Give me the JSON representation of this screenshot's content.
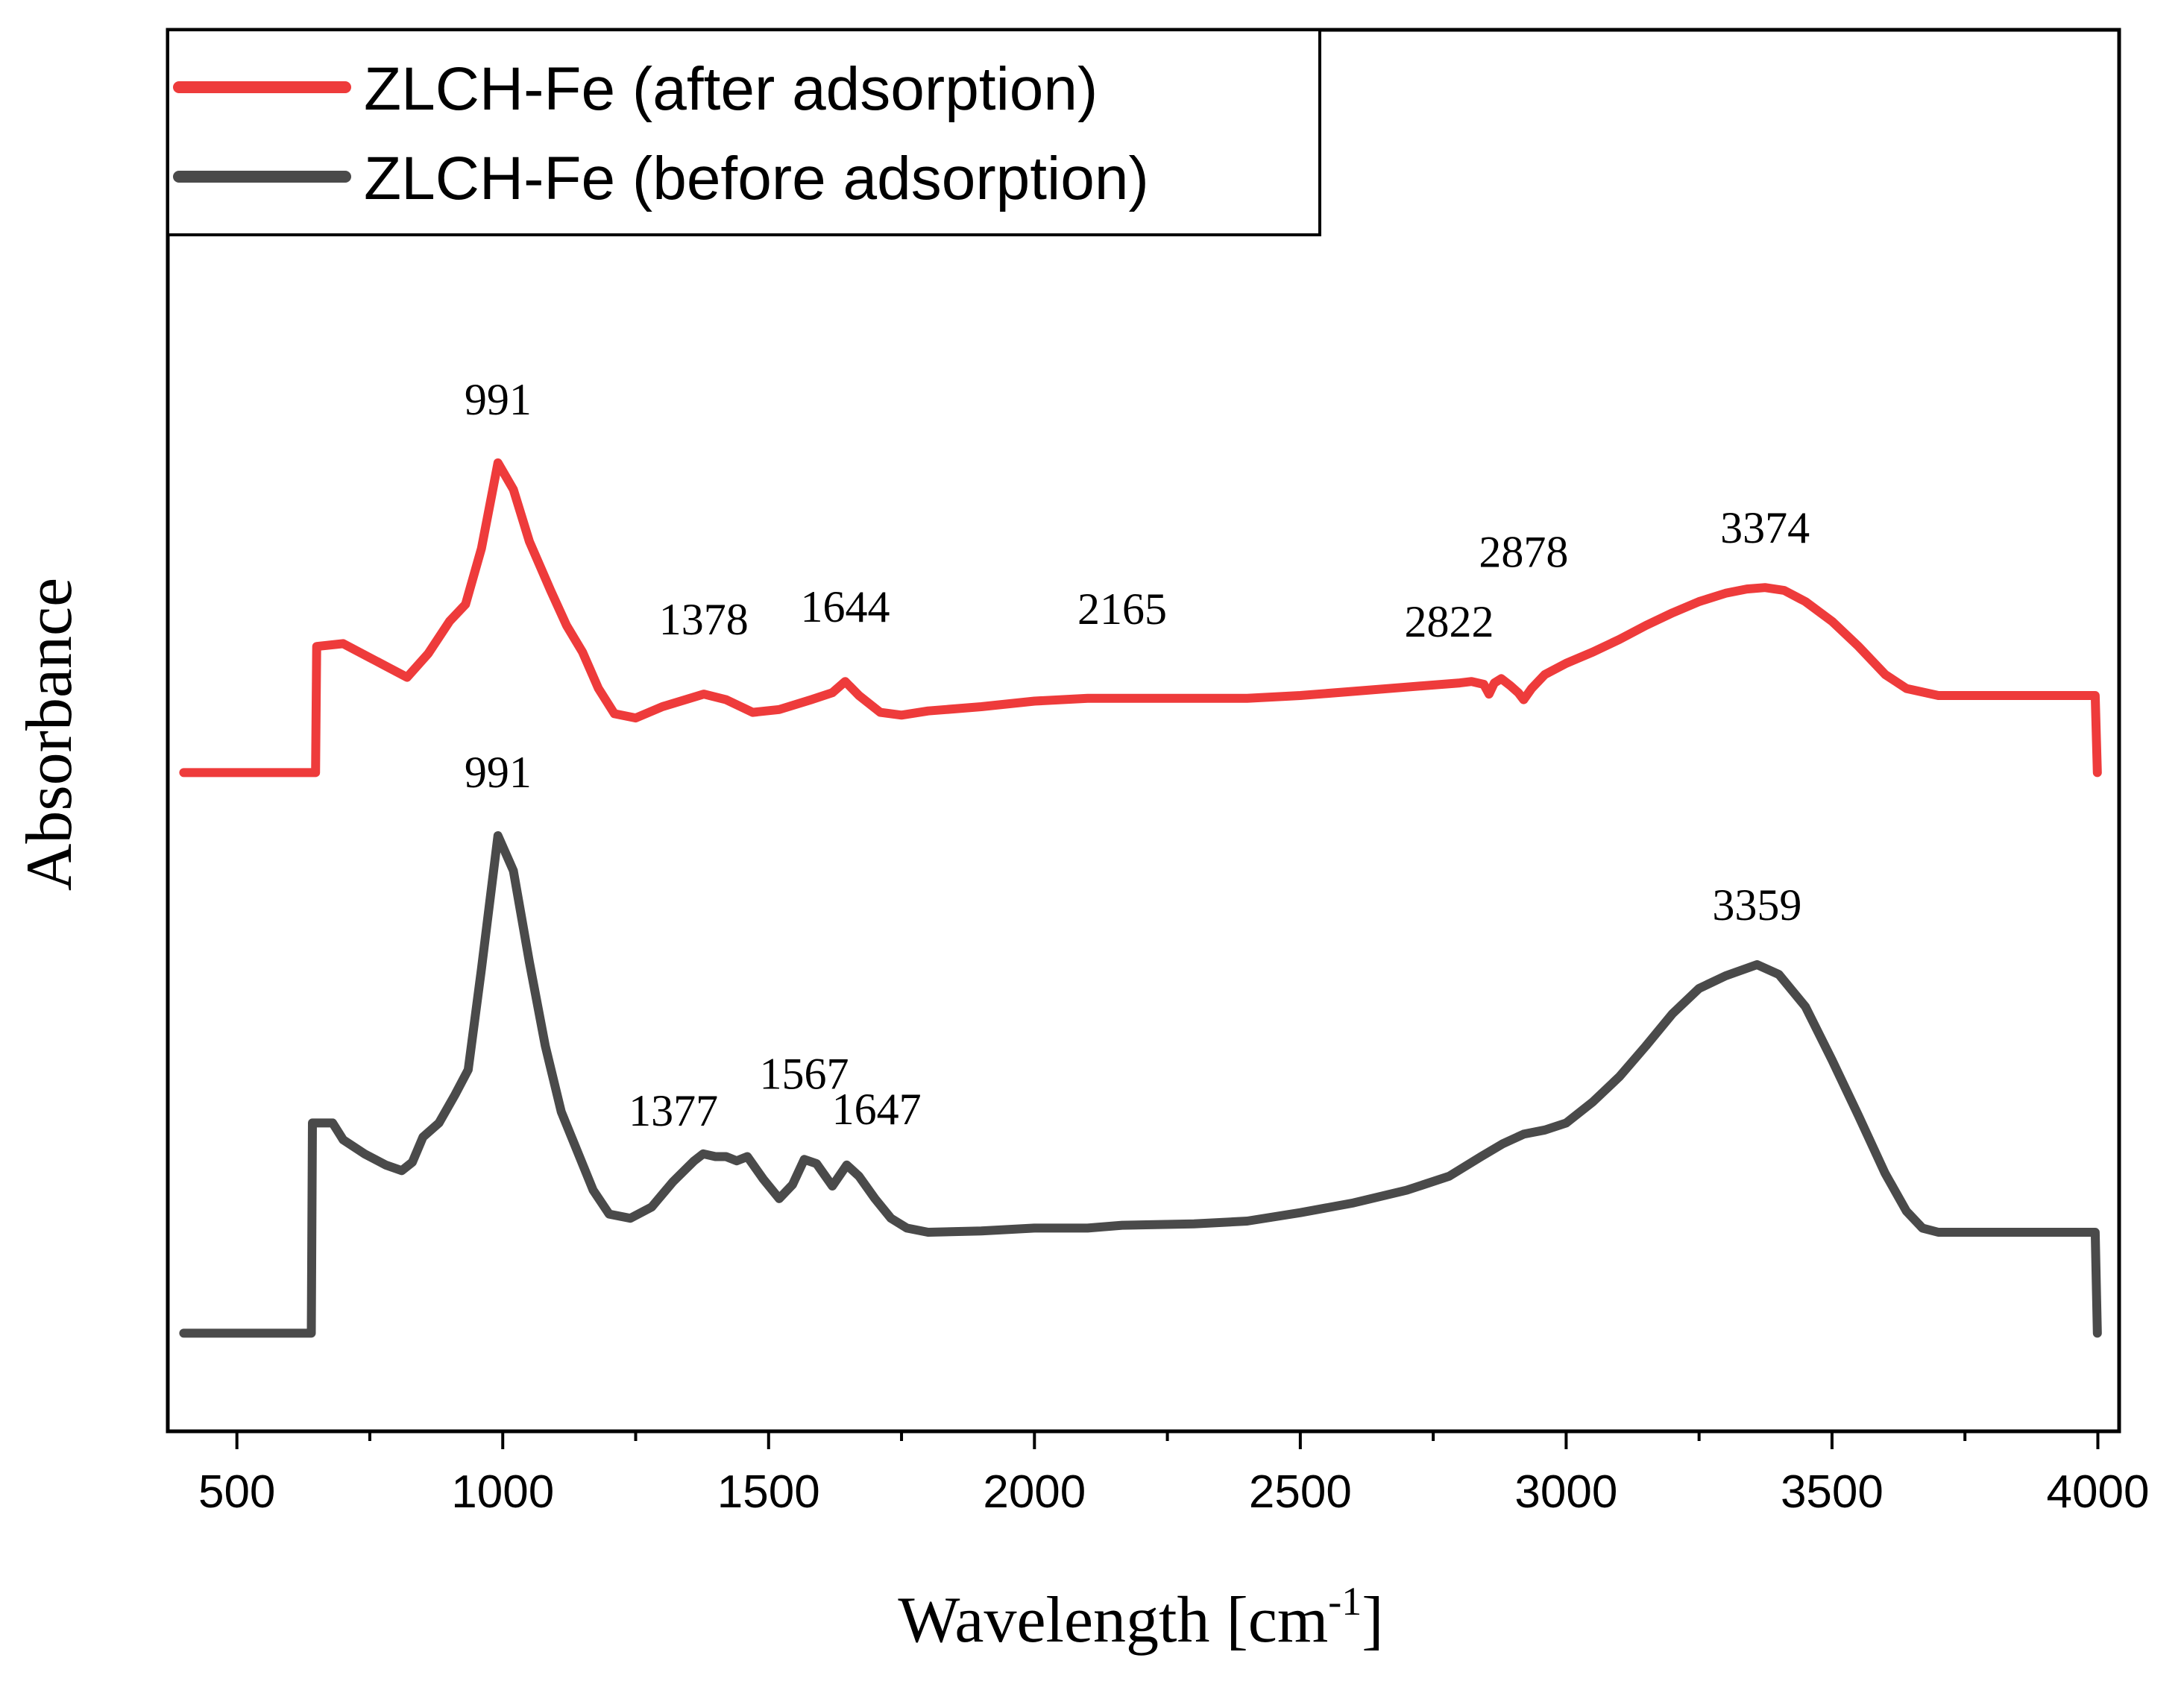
{
  "chart_data": {
    "type": "line",
    "title": "",
    "xlabel": "Wavelength [cm",
    "xlabel_sup": "-1",
    "xlabel_suffix": "]",
    "ylabel": "Absorbance",
    "xlim": [
      370,
      4040
    ],
    "ylim": [
      0,
      100
    ],
    "xticks": [
      500,
      1000,
      1500,
      2000,
      2500,
      3000,
      3500,
      4000
    ],
    "yticks_labeled": false,
    "grid": false,
    "legend_position": "top-left",
    "series": [
      {
        "name": "ZLCH-Fe (after adsorption)",
        "color": "#ee3b3b",
        "points": [
          [
            400,
            47
          ],
          [
            648,
            47
          ],
          [
            650,
            56
          ],
          [
            700,
            56.2
          ],
          [
            760,
            55
          ],
          [
            820,
            53.8
          ],
          [
            860,
            55.5
          ],
          [
            900,
            57.8
          ],
          [
            930,
            59
          ],
          [
            960,
            63
          ],
          [
            991,
            69.1
          ],
          [
            1020,
            67.2
          ],
          [
            1050,
            63.5
          ],
          [
            1090,
            60
          ],
          [
            1120,
            57.5
          ],
          [
            1150,
            55.6
          ],
          [
            1180,
            53
          ],
          [
            1210,
            51.2
          ],
          [
            1250,
            50.9
          ],
          [
            1300,
            51.7
          ],
          [
            1378,
            52.6
          ],
          [
            1420,
            52.2
          ],
          [
            1470,
            51.3
          ],
          [
            1520,
            51.5
          ],
          [
            1580,
            52.2
          ],
          [
            1620,
            52.7
          ],
          [
            1644,
            53.5
          ],
          [
            1670,
            52.5
          ],
          [
            1710,
            51.3
          ],
          [
            1750,
            51.1
          ],
          [
            1800,
            51.4
          ],
          [
            1900,
            51.7
          ],
          [
            2000,
            52.1
          ],
          [
            2100,
            52.3
          ],
          [
            2165,
            52.3
          ],
          [
            2300,
            52.3
          ],
          [
            2400,
            52.3
          ],
          [
            2500,
            52.5
          ],
          [
            2600,
            52.8
          ],
          [
            2700,
            53.1
          ],
          [
            2800,
            53.4
          ],
          [
            2822,
            53.5
          ],
          [
            2845,
            53.3
          ],
          [
            2855,
            52.6
          ],
          [
            2865,
            53.4
          ],
          [
            2878,
            53.7
          ],
          [
            2895,
            53.2
          ],
          [
            2910,
            52.7
          ],
          [
            2920,
            52.2
          ],
          [
            2935,
            53
          ],
          [
            2960,
            54
          ],
          [
            3000,
            54.8
          ],
          [
            3050,
            55.6
          ],
          [
            3100,
            56.5
          ],
          [
            3150,
            57.5
          ],
          [
            3200,
            58.4
          ],
          [
            3250,
            59.2
          ],
          [
            3300,
            59.8
          ],
          [
            3340,
            60.1
          ],
          [
            3374,
            60.2
          ],
          [
            3410,
            60
          ],
          [
            3450,
            59.2
          ],
          [
            3500,
            57.8
          ],
          [
            3550,
            56
          ],
          [
            3600,
            54
          ],
          [
            3640,
            53
          ],
          [
            3700,
            52.5
          ],
          [
            3800,
            52.5
          ],
          [
            3900,
            52.5
          ],
          [
            3995,
            52.5
          ],
          [
            3999,
            47
          ]
        ]
      },
      {
        "name": "ZLCH-Fe (before adsorption)",
        "color": "#4a4a4a",
        "points": [
          [
            400,
            7
          ],
          [
            640,
            7
          ],
          [
            642,
            22
          ],
          [
            680,
            22
          ],
          [
            700,
            20.8
          ],
          [
            740,
            19.8
          ],
          [
            780,
            19
          ],
          [
            810,
            18.6
          ],
          [
            830,
            19.2
          ],
          [
            850,
            21
          ],
          [
            880,
            22
          ],
          [
            910,
            24
          ],
          [
            935,
            25.8
          ],
          [
            960,
            33
          ],
          [
            991,
            42.5
          ],
          [
            1020,
            40
          ],
          [
            1050,
            33.5
          ],
          [
            1080,
            27.5
          ],
          [
            1110,
            22.8
          ],
          [
            1140,
            20
          ],
          [
            1170,
            17.2
          ],
          [
            1200,
            15.5
          ],
          [
            1240,
            15.2
          ],
          [
            1280,
            16
          ],
          [
            1320,
            17.8
          ],
          [
            1360,
            19.3
          ],
          [
            1377,
            19.8
          ],
          [
            1400,
            19.6
          ],
          [
            1420,
            19.6
          ],
          [
            1440,
            19.3
          ],
          [
            1460,
            19.6
          ],
          [
            1490,
            18
          ],
          [
            1520,
            16.6
          ],
          [
            1545,
            17.6
          ],
          [
            1567,
            19.4
          ],
          [
            1590,
            19.1
          ],
          [
            1620,
            17.5
          ],
          [
            1647,
            19
          ],
          [
            1670,
            18.2
          ],
          [
            1700,
            16.6
          ],
          [
            1730,
            15.2
          ],
          [
            1760,
            14.5
          ],
          [
            1800,
            14.2
          ],
          [
            1900,
            14.3
          ],
          [
            2000,
            14.5
          ],
          [
            2100,
            14.5
          ],
          [
            2165,
            14.7
          ],
          [
            2300,
            14.8
          ],
          [
            2400,
            15
          ],
          [
            2500,
            15.6
          ],
          [
            2600,
            16.3
          ],
          [
            2700,
            17.2
          ],
          [
            2780,
            18.2
          ],
          [
            2840,
            19.6
          ],
          [
            2880,
            20.5
          ],
          [
            2920,
            21.2
          ],
          [
            2960,
            21.5
          ],
          [
            3000,
            22
          ],
          [
            3050,
            23.5
          ],
          [
            3100,
            25.3
          ],
          [
            3150,
            27.5
          ],
          [
            3200,
            29.8
          ],
          [
            3250,
            31.6
          ],
          [
            3300,
            32.5
          ],
          [
            3359,
            33.3
          ],
          [
            3400,
            32.6
          ],
          [
            3450,
            30.3
          ],
          [
            3500,
            26.5
          ],
          [
            3550,
            22.5
          ],
          [
            3600,
            18.4
          ],
          [
            3640,
            15.7
          ],
          [
            3670,
            14.5
          ],
          [
            3700,
            14.2
          ],
          [
            3800,
            14.2
          ],
          [
            3900,
            14.2
          ],
          [
            3995,
            14.2
          ],
          [
            3999,
            7
          ]
        ]
      }
    ],
    "annotations": [
      {
        "text": "991",
        "x": 991,
        "y": 69.1,
        "series": 0
      },
      {
        "text": "1378",
        "x": 1378,
        "y": 52.6,
        "series": 0
      },
      {
        "text": "1644",
        "x": 1644,
        "y": 53.5,
        "series": 0
      },
      {
        "text": "2165",
        "x": 2165,
        "y": 52.3,
        "series": 0
      },
      {
        "text": "2822",
        "x": 2822,
        "y": 53.5,
        "series": 0
      },
      {
        "text": "2878",
        "x": 2878,
        "y": 53.7,
        "series": 0
      },
      {
        "text": "3374",
        "x": 3374,
        "y": 60.2,
        "series": 0
      },
      {
        "text": "991",
        "x": 991,
        "y": 42.5,
        "series": 1
      },
      {
        "text": "1377",
        "x": 1377,
        "y": 19.8,
        "series": 1
      },
      {
        "text": "1567",
        "x": 1567,
        "y": 19.4,
        "series": 1
      },
      {
        "text": "1647",
        "x": 1647,
        "y": 19,
        "series": 1
      },
      {
        "text": "3359",
        "x": 3359,
        "y": 33.3,
        "series": 1
      }
    ]
  }
}
